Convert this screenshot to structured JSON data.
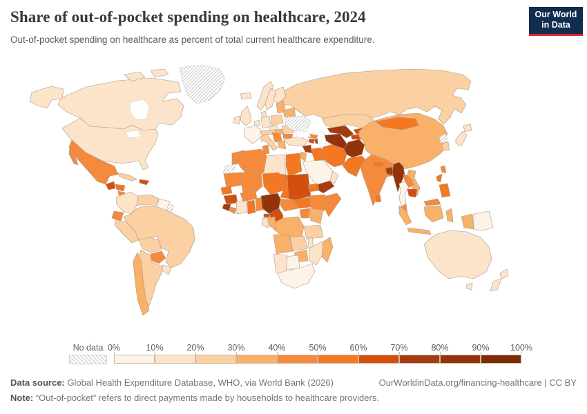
{
  "header": {
    "title": "Share of out-of-pocket spending on healthcare, 2024",
    "subtitle": "Out-of-pocket spending on healthcare as percent of total current healthcare expenditure.",
    "logo": {
      "line1": "Our World",
      "line2": "in Data",
      "bg": "#102c4f",
      "accent": "#e0242a"
    }
  },
  "chart_data": {
    "type": "choropleth_map",
    "title": "Share of out-of-pocket spending on healthcare, 2024",
    "unit": "% of total current healthcare expenditure",
    "bins": {
      "labels": [
        "0%",
        "10%",
        "20%",
        "30%",
        "40%",
        "50%",
        "60%",
        "70%",
        "80%",
        "90%",
        "100%"
      ],
      "colors": [
        "#fdf3e8",
        "#fbe4c9",
        "#fbd0a2",
        "#f9b068",
        "#f58a3c",
        "#f47721",
        "#d24f0e",
        "#a33c10",
        "#93330c",
        "#7f2a06"
      ],
      "ranges": [
        "0-10%",
        "10-20%",
        "20-30%",
        "30-40%",
        "40-50%",
        "50-60%",
        "60-70%",
        "70-80%",
        "80-90%",
        "90-100%"
      ]
    },
    "no_data": {
      "label": "No data",
      "hatch_color": "#cccccc",
      "border_color": "#c4c4c4"
    },
    "map_style": {
      "border_color": "#a89a8d",
      "sea_outline": "#d0d0d0"
    },
    "regions": [
      {
        "id": "russia",
        "name": "Russia",
        "bin": 2
      },
      {
        "id": "canada",
        "name": "Canada",
        "bin": 1
      },
      {
        "id": "arctic_islands",
        "name": "Canadian Arctic Islands",
        "bin": 1
      },
      {
        "id": "greenland",
        "name": "Greenland",
        "bin": "no_data"
      },
      {
        "id": "alaska",
        "name": "Alaska (United States)",
        "bin": 1
      },
      {
        "id": "usa",
        "name": "United States",
        "bin": 1
      },
      {
        "id": "mexico",
        "name": "Mexico",
        "bin": 4
      },
      {
        "id": "guatemala",
        "name": "Guatemala",
        "bin": 6
      },
      {
        "id": "honduras",
        "name": "Honduras",
        "bin": 5
      },
      {
        "id": "nicaragua",
        "name": "Nicaragua",
        "bin": 4
      },
      {
        "id": "costa_rica",
        "name": "Costa Rica",
        "bin": 2
      },
      {
        "id": "panama",
        "name": "Panama",
        "bin": 3
      },
      {
        "id": "cuba",
        "name": "Cuba",
        "bin": 2
      },
      {
        "id": "haiti_dr",
        "name": "Haiti / Dominican Republic",
        "bin": 6
      },
      {
        "id": "colombia",
        "name": "Colombia",
        "bin": 1
      },
      {
        "id": "venezuela",
        "name": "Venezuela",
        "bin": 2
      },
      {
        "id": "guyanas",
        "name": "Guyana / Suriname",
        "bin": 0
      },
      {
        "id": "french_guiana",
        "name": "French Guiana",
        "bin": "no_data"
      },
      {
        "id": "ecuador",
        "name": "Ecuador",
        "bin": 4
      },
      {
        "id": "peru",
        "name": "Peru",
        "bin": 2
      },
      {
        "id": "brazil",
        "name": "Brazil",
        "bin": 2
      },
      {
        "id": "bolivia",
        "name": "Bolivia",
        "bin": 2
      },
      {
        "id": "paraguay",
        "name": "Paraguay",
        "bin": 4
      },
      {
        "id": "uruguay",
        "name": "Uruguay",
        "bin": 1
      },
      {
        "id": "argentina",
        "name": "Argentina",
        "bin": 2
      },
      {
        "id": "chile",
        "name": "Chile",
        "bin": 3
      },
      {
        "id": "iceland",
        "name": "Iceland",
        "bin": 1
      },
      {
        "id": "norway",
        "name": "Norway",
        "bin": 1
      },
      {
        "id": "sweden",
        "name": "Sweden",
        "bin": 1
      },
      {
        "id": "finland",
        "name": "Finland",
        "bin": 1
      },
      {
        "id": "denmark",
        "name": "Denmark",
        "bin": 1
      },
      {
        "id": "uk",
        "name": "United Kingdom",
        "bin": 1
      },
      {
        "id": "ireland",
        "name": "Ireland",
        "bin": 1
      },
      {
        "id": "france",
        "name": "France",
        "bin": 0
      },
      {
        "id": "benelux",
        "name": "Belgium / Netherlands",
        "bin": 1
      },
      {
        "id": "germany",
        "name": "Germany",
        "bin": 1
      },
      {
        "id": "poland",
        "name": "Poland",
        "bin": 2
      },
      {
        "id": "czech",
        "name": "Czechia",
        "bin": 1
      },
      {
        "id": "austria_switz",
        "name": "Austria / Switzerland",
        "bin": 2
      },
      {
        "id": "hungary",
        "name": "Hungary",
        "bin": 3
      },
      {
        "id": "italy",
        "name": "Italy",
        "bin": 2
      },
      {
        "id": "balkans",
        "name": "Western Balkans",
        "bin": 4
      },
      {
        "id": "greece",
        "name": "Greece",
        "bin": 3
      },
      {
        "id": "romania",
        "name": "Romania",
        "bin": 2
      },
      {
        "id": "bulgaria",
        "name": "Bulgaria",
        "bin": 4
      },
      {
        "id": "baltics",
        "name": "Baltic States",
        "bin": 3
      },
      {
        "id": "belarus",
        "name": "Belarus",
        "bin": 3
      },
      {
        "id": "ukraine",
        "name": "Ukraine",
        "bin": "no_data"
      },
      {
        "id": "turkey",
        "name": "Turkey",
        "bin": 1
      },
      {
        "id": "georgia",
        "name": "Georgia",
        "bin": 4
      },
      {
        "id": "armenia",
        "name": "Armenia",
        "bin": 6
      },
      {
        "id": "azerbaijan",
        "name": "Azerbaijan",
        "bin": 7
      },
      {
        "id": "syria",
        "name": "Syria",
        "bin": 7
      },
      {
        "id": "israel_jordan",
        "name": "Israel / Jordan",
        "bin": 3
      },
      {
        "id": "iraq",
        "name": "Iraq",
        "bin": 5
      },
      {
        "id": "saudi_arabia",
        "name": "Saudi Arabia",
        "bin": 0
      },
      {
        "id": "yemen",
        "name": "Yemen",
        "bin": 7
      },
      {
        "id": "oman",
        "name": "Oman",
        "bin": 1
      },
      {
        "id": "iran",
        "name": "Iran",
        "bin": 5
      },
      {
        "id": "kazakhstan",
        "name": "Kazakhstan",
        "bin": 2
      },
      {
        "id": "uzbekistan",
        "name": "Uzbekistan",
        "bin": 7
      },
      {
        "id": "turkmenistan",
        "name": "Turkmenistan",
        "bin": 8
      },
      {
        "id": "kyrgyzstan",
        "name": "Kyrgyzstan",
        "bin": 6
      },
      {
        "id": "tajikistan",
        "name": "Tajikistan",
        "bin": 6
      },
      {
        "id": "afghanistan",
        "name": "Afghanistan",
        "bin": 8
      },
      {
        "id": "pakistan",
        "name": "Pakistan",
        "bin": 5
      },
      {
        "id": "china",
        "name": "China",
        "bin": 3
      },
      {
        "id": "mongolia",
        "name": "Mongolia",
        "bin": 5
      },
      {
        "id": "india",
        "name": "India",
        "bin": 4
      },
      {
        "id": "nepal",
        "name": "Nepal",
        "bin": 5
      },
      {
        "id": "bangladesh",
        "name": "Bangladesh",
        "bin": 7
      },
      {
        "id": "sri_lanka",
        "name": "Sri Lanka",
        "bin": 5
      },
      {
        "id": "myanmar",
        "name": "Myanmar",
        "bin": 8
      },
      {
        "id": "thailand",
        "name": "Thailand",
        "bin": 0
      },
      {
        "id": "laos",
        "name": "Laos",
        "bin": 4
      },
      {
        "id": "vietnam",
        "name": "Vietnam",
        "bin": 3
      },
      {
        "id": "cambodia",
        "name": "Cambodia",
        "bin": 6
      },
      {
        "id": "malaysia",
        "name": "Malaysia",
        "bin": 4
      },
      {
        "id": "north_korea",
        "name": "North Korea",
        "bin": "no_data"
      },
      {
        "id": "south_korea",
        "name": "South Korea",
        "bin": 2
      },
      {
        "id": "japan",
        "name": "Japan",
        "bin": 1
      },
      {
        "id": "taiwan",
        "name": "Taiwan",
        "bin": 4
      },
      {
        "id": "philippines",
        "name": "Philippines",
        "bin": 5
      },
      {
        "id": "indonesia",
        "name": "Indonesia",
        "bin": 3
      },
      {
        "id": "papua_new_guinea",
        "name": "Papua New Guinea",
        "bin": 0
      },
      {
        "id": "australia",
        "name": "Australia",
        "bin": 1
      },
      {
        "id": "new_zealand",
        "name": "New Zealand",
        "bin": 1
      },
      {
        "id": "morocco",
        "name": "Morocco",
        "bin": 4
      },
      {
        "id": "western_sahara",
        "name": "Western Sahara",
        "bin": "no_data"
      },
      {
        "id": "algeria",
        "name": "Algeria",
        "bin": 4
      },
      {
        "id": "tunisia",
        "name": "Tunisia",
        "bin": 4
      },
      {
        "id": "libya",
        "name": "Libya",
        "bin": 1
      },
      {
        "id": "egypt",
        "name": "Egypt",
        "bin": 5
      },
      {
        "id": "mauritania",
        "name": "Mauritania",
        "bin": 4
      },
      {
        "id": "mali",
        "name": "Mali",
        "bin": 4
      },
      {
        "id": "niger",
        "name": "Niger",
        "bin": 5
      },
      {
        "id": "chad",
        "name": "Chad",
        "bin": 5
      },
      {
        "id": "senegal",
        "name": "Senegal",
        "bin": 5
      },
      {
        "id": "guinea",
        "name": "Guinea",
        "bin": 6
      },
      {
        "id": "sierra_leone",
        "name": "Sierra Leone",
        "bin": 7
      },
      {
        "id": "liberia",
        "name": "Liberia",
        "bin": 4
      },
      {
        "id": "ivory_coast",
        "name": "Côte d'Ivoire",
        "bin": 1
      },
      {
        "id": "ghana",
        "name": "Ghana",
        "bin": 5
      },
      {
        "id": "togo_benin",
        "name": "Togo / Benin",
        "bin": 4
      },
      {
        "id": "burkina_faso",
        "name": "Burkina Faso",
        "bin": 4
      },
      {
        "id": "nigeria",
        "name": "Nigeria",
        "bin": 8
      },
      {
        "id": "cameroon",
        "name": "Cameroon",
        "bin": 6
      },
      {
        "id": "central_african_republic",
        "name": "Central African Republic",
        "bin": 4
      },
      {
        "id": "sudan",
        "name": "Sudan",
        "bin": 6
      },
      {
        "id": "south_sudan",
        "name": "South Sudan",
        "bin": 5
      },
      {
        "id": "eritrea",
        "name": "Eritrea",
        "bin": 5
      },
      {
        "id": "ethiopia",
        "name": "Ethiopia",
        "bin": 4
      },
      {
        "id": "somalia",
        "name": "Somalia",
        "bin": 4
      },
      {
        "id": "kenya",
        "name": "Kenya",
        "bin": 3
      },
      {
        "id": "uganda",
        "name": "Uganda",
        "bin": 4
      },
      {
        "id": "drc",
        "name": "Democratic Republic of Congo",
        "bin": 3
      },
      {
        "id": "congo",
        "name": "Congo",
        "bin": 3
      },
      {
        "id": "gabon",
        "name": "Gabon",
        "bin": 1
      },
      {
        "id": "equatorial_guinea",
        "name": "Equatorial Guinea",
        "bin": 6
      },
      {
        "id": "tanzania",
        "name": "Tanzania",
        "bin": 2
      },
      {
        "id": "angola",
        "name": "Angola",
        "bin": 3
      },
      {
        "id": "zambia",
        "name": "Zambia",
        "bin": 2
      },
      {
        "id": "malawi",
        "name": "Malawi",
        "bin": 1
      },
      {
        "id": "mozambique",
        "name": "Mozambique",
        "bin": 1
      },
      {
        "id": "zimbabwe",
        "name": "Zimbabwe",
        "bin": 3
      },
      {
        "id": "botswana",
        "name": "Botswana",
        "bin": 0
      },
      {
        "id": "namibia",
        "name": "Namibia",
        "bin": 1
      },
      {
        "id": "south_africa",
        "name": "South Africa",
        "bin": 0
      },
      {
        "id": "madagascar",
        "name": "Madagascar",
        "bin": 3
      }
    ]
  },
  "footer": {
    "source_label": "Data source:",
    "source_text": " Global Health Expenditure Database, WHO, via World Bank (2026)",
    "rights": "OurWorldinData.org/financing-healthcare | CC BY",
    "note_label": "Note:",
    "note_text": " “Out-of-pocket” refers to direct payments made by households to healthcare providers."
  }
}
